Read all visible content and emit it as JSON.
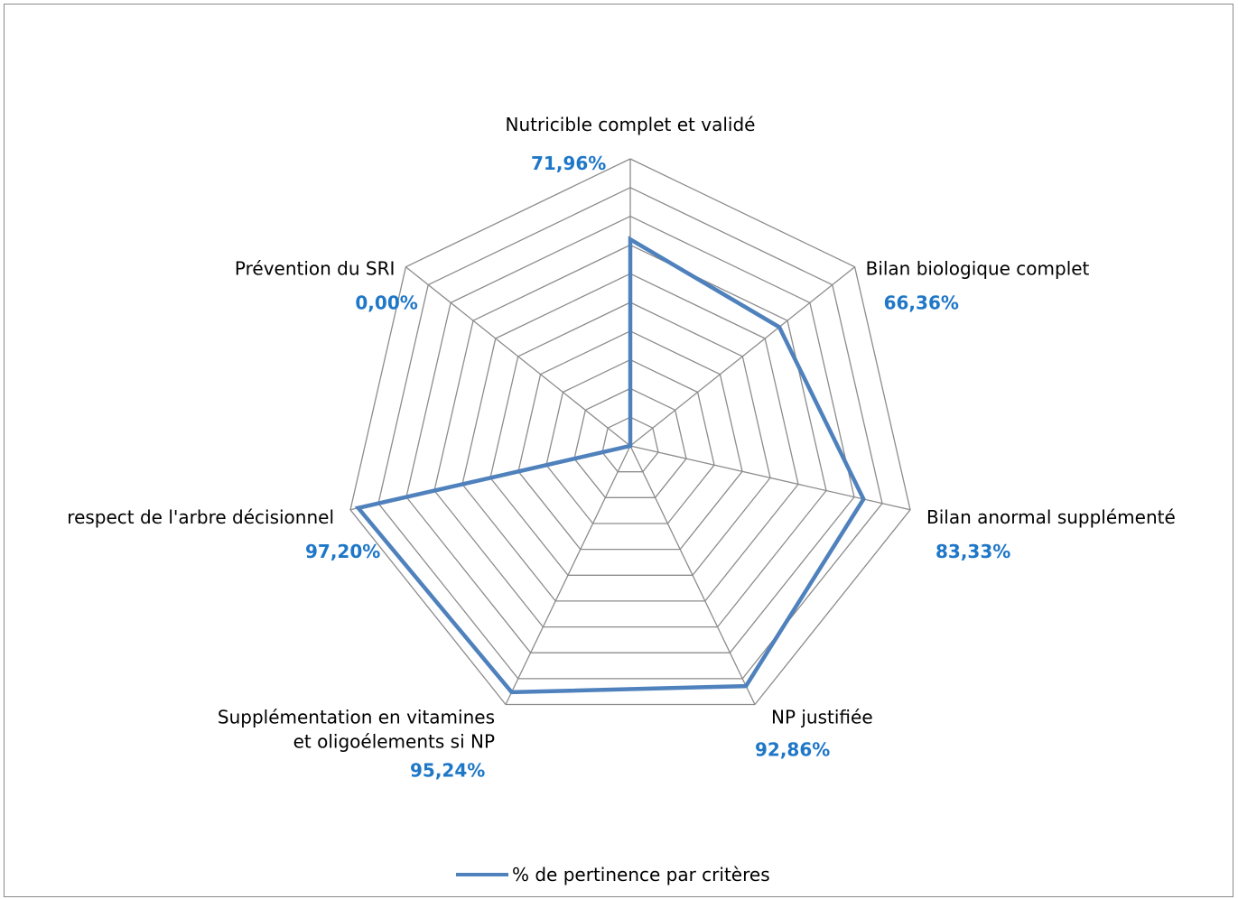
{
  "chart_data": {
    "type": "radar",
    "categories": [
      "Nutricible complet et validé",
      "Bilan biologique complet",
      "Bilan anormal supplémenté",
      "NP justifiée",
      "Supplémentation en vitamines et oligoélements si NP",
      "respect de l'arbre décisionnel",
      "Prévention du SRI"
    ],
    "category_lines": [
      [
        "Nutricible complet et validé"
      ],
      [
        "Bilan biologique complet"
      ],
      [
        "Bilan anormal supplémenté"
      ],
      [
        "NP justifiée"
      ],
      [
        "Supplémentation en vitamines",
        "et oligoélements si NP"
      ],
      [
        "respect de l'arbre décisionnel"
      ],
      [
        "Prévention du SRI"
      ]
    ],
    "series": [
      {
        "name": "% de pertinence par critères",
        "values": [
          71.96,
          66.36,
          83.33,
          92.86,
          95.24,
          97.2,
          0.0
        ],
        "color": "#4f81bd"
      }
    ],
    "data_labels": [
      "71,96%",
      "66,36%",
      "83,33%",
      "92,86%",
      "95,24%",
      "97,20%",
      "0,00%"
    ],
    "range": [
      0,
      100
    ],
    "rings": 10,
    "legend": "bottom",
    "label_color": "#1f77c8",
    "grid_color": "#8c8c8c"
  }
}
